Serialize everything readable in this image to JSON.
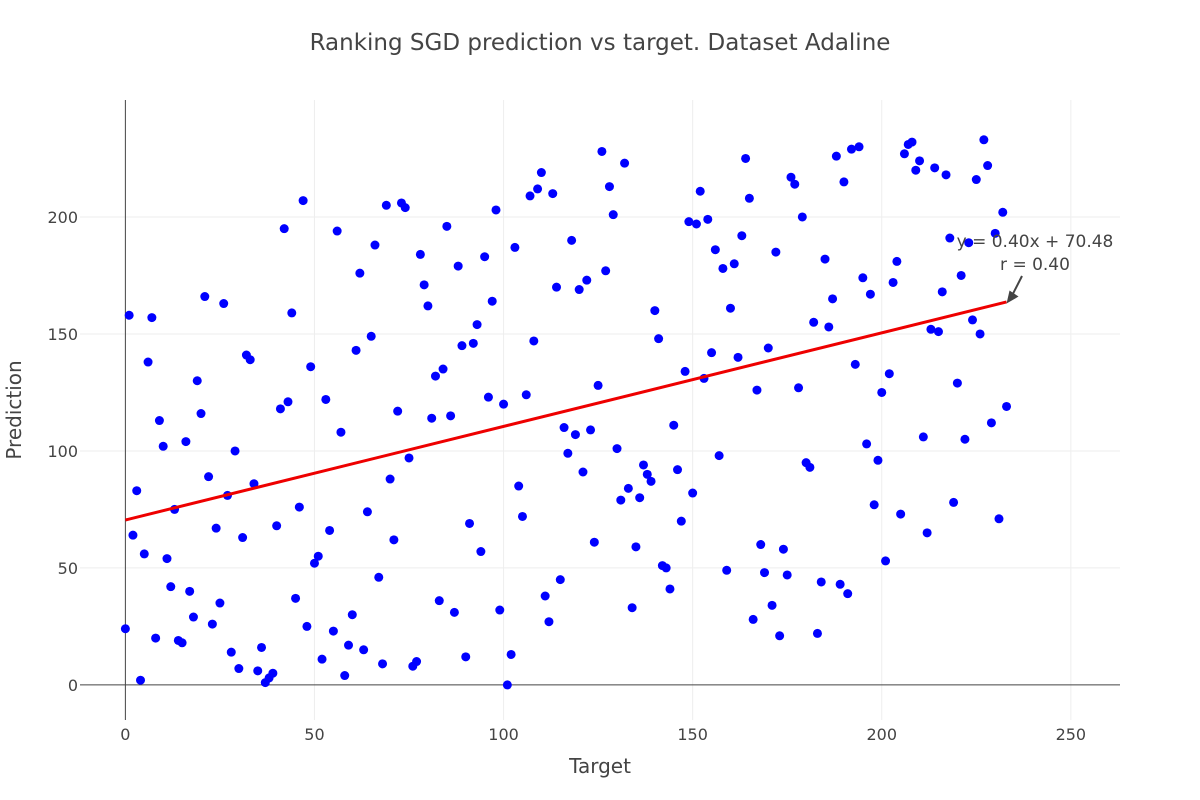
{
  "chart_data": {
    "type": "scatter",
    "title": "Ranking SGD prediction vs target. Dataset Adaline",
    "xlabel": "Target",
    "ylabel": "Prediction",
    "xlim": [
      -12,
      263
    ],
    "ylim": [
      -15,
      250
    ],
    "xticks": [
      0,
      50,
      100,
      150,
      200,
      250
    ],
    "yticks": [
      0,
      50,
      100,
      150,
      200
    ],
    "grid": true,
    "colors": {
      "points": "#0000ff",
      "fit_line": "#ee0000",
      "axis": "#444444",
      "grid": "#eeeeee"
    },
    "fit_line": {
      "slope": 0.4,
      "intercept": 70.48,
      "x_range": [
        0,
        233
      ]
    },
    "annotation": {
      "lines": [
        "y = 0.40x + 70.48",
        "r = 0.40"
      ],
      "points_to": [
        233,
        163
      ]
    },
    "points": [
      [
        0,
        24
      ],
      [
        1,
        158
      ],
      [
        2,
        64
      ],
      [
        3,
        83
      ],
      [
        4,
        2
      ],
      [
        5,
        56
      ],
      [
        6,
        138
      ],
      [
        7,
        157
      ],
      [
        8,
        20
      ],
      [
        9,
        113
      ],
      [
        10,
        102
      ],
      [
        11,
        54
      ],
      [
        12,
        42
      ],
      [
        13,
        75
      ],
      [
        14,
        19
      ],
      [
        15,
        18
      ],
      [
        16,
        104
      ],
      [
        17,
        40
      ],
      [
        18,
        29
      ],
      [
        19,
        130
      ],
      [
        20,
        116
      ],
      [
        21,
        166
      ],
      [
        22,
        89
      ],
      [
        23,
        26
      ],
      [
        24,
        67
      ],
      [
        25,
        35
      ],
      [
        26,
        163
      ],
      [
        27,
        81
      ],
      [
        28,
        14
      ],
      [
        29,
        100
      ],
      [
        30,
        7
      ],
      [
        31,
        63
      ],
      [
        32,
        141
      ],
      [
        33,
        139
      ],
      [
        34,
        86
      ],
      [
        35,
        6
      ],
      [
        36,
        16
      ],
      [
        37,
        1
      ],
      [
        38,
        3
      ],
      [
        39,
        5
      ],
      [
        40,
        68
      ],
      [
        41,
        118
      ],
      [
        42,
        195
      ],
      [
        43,
        121
      ],
      [
        44,
        159
      ],
      [
        45,
        37
      ],
      [
        46,
        76
      ],
      [
        47,
        207
      ],
      [
        48,
        25
      ],
      [
        49,
        136
      ],
      [
        50,
        52
      ],
      [
        51,
        55
      ],
      [
        52,
        11
      ],
      [
        53,
        122
      ],
      [
        54,
        66
      ],
      [
        55,
        23
      ],
      [
        56,
        194
      ],
      [
        57,
        108
      ],
      [
        58,
        4
      ],
      [
        59,
        17
      ],
      [
        60,
        30
      ],
      [
        61,
        143
      ],
      [
        62,
        176
      ],
      [
        63,
        15
      ],
      [
        64,
        74
      ],
      [
        65,
        149
      ],
      [
        66,
        188
      ],
      [
        67,
        46
      ],
      [
        68,
        9
      ],
      [
        69,
        205
      ],
      [
        70,
        88
      ],
      [
        71,
        62
      ],
      [
        72,
        117
      ],
      [
        73,
        206
      ],
      [
        74,
        204
      ],
      [
        75,
        97
      ],
      [
        76,
        8
      ],
      [
        77,
        10
      ],
      [
        78,
        184
      ],
      [
        79,
        171
      ],
      [
        80,
        162
      ],
      [
        81,
        114
      ],
      [
        82,
        132
      ],
      [
        83,
        36
      ],
      [
        84,
        135
      ],
      [
        85,
        196
      ],
      [
        86,
        115
      ],
      [
        87,
        31
      ],
      [
        88,
        179
      ],
      [
        89,
        145
      ],
      [
        90,
        12
      ],
      [
        91,
        69
      ],
      [
        92,
        146
      ],
      [
        93,
        154
      ],
      [
        94,
        57
      ],
      [
        95,
        183
      ],
      [
        96,
        123
      ],
      [
        97,
        164
      ],
      [
        98,
        203
      ],
      [
        99,
        32
      ],
      [
        100,
        120
      ],
      [
        101,
        0
      ],
      [
        102,
        13
      ],
      [
        103,
        187
      ],
      [
        104,
        85
      ],
      [
        105,
        72
      ],
      [
        106,
        124
      ],
      [
        107,
        209
      ],
      [
        108,
        147
      ],
      [
        109,
        212
      ],
      [
        110,
        219
      ],
      [
        111,
        38
      ],
      [
        112,
        27
      ],
      [
        113,
        210
      ],
      [
        114,
        170
      ],
      [
        115,
        45
      ],
      [
        116,
        110
      ],
      [
        117,
        99
      ],
      [
        118,
        190
      ],
      [
        119,
        107
      ],
      [
        120,
        169
      ],
      [
        121,
        91
      ],
      [
        122,
        173
      ],
      [
        123,
        109
      ],
      [
        124,
        61
      ],
      [
        125,
        128
      ],
      [
        126,
        228
      ],
      [
        127,
        177
      ],
      [
        128,
        213
      ],
      [
        129,
        201
      ],
      [
        130,
        101
      ],
      [
        131,
        79
      ],
      [
        132,
        223
      ],
      [
        133,
        84
      ],
      [
        134,
        33
      ],
      [
        135,
        59
      ],
      [
        136,
        80
      ],
      [
        137,
        94
      ],
      [
        138,
        90
      ],
      [
        139,
        87
      ],
      [
        140,
        160
      ],
      [
        141,
        148
      ],
      [
        142,
        51
      ],
      [
        143,
        50
      ],
      [
        144,
        41
      ],
      [
        145,
        111
      ],
      [
        146,
        92
      ],
      [
        147,
        70
      ],
      [
        148,
        134
      ],
      [
        149,
        198
      ],
      [
        150,
        82
      ],
      [
        151,
        197
      ],
      [
        152,
        211
      ],
      [
        153,
        131
      ],
      [
        154,
        199
      ],
      [
        155,
        142
      ],
      [
        156,
        186
      ],
      [
        157,
        98
      ],
      [
        158,
        178
      ],
      [
        159,
        49
      ],
      [
        160,
        161
      ],
      [
        161,
        180
      ],
      [
        162,
        140
      ],
      [
        163,
        192
      ],
      [
        164,
        225
      ],
      [
        165,
        208
      ],
      [
        166,
        28
      ],
      [
        167,
        126
      ],
      [
        168,
        60
      ],
      [
        169,
        48
      ],
      [
        170,
        144
      ],
      [
        171,
        34
      ],
      [
        172,
        185
      ],
      [
        173,
        21
      ],
      [
        174,
        58
      ],
      [
        175,
        47
      ],
      [
        176,
        217
      ],
      [
        177,
        214
      ],
      [
        178,
        127
      ],
      [
        179,
        200
      ],
      [
        180,
        95
      ],
      [
        181,
        93
      ],
      [
        182,
        155
      ],
      [
        183,
        22
      ],
      [
        184,
        44
      ],
      [
        185,
        182
      ],
      [
        186,
        153
      ],
      [
        187,
        165
      ],
      [
        188,
        226
      ],
      [
        189,
        43
      ],
      [
        190,
        215
      ],
      [
        191,
        39
      ],
      [
        192,
        229
      ],
      [
        193,
        137
      ],
      [
        194,
        230
      ],
      [
        195,
        174
      ],
      [
        196,
        103
      ],
      [
        197,
        167
      ],
      [
        198,
        77
      ],
      [
        199,
        96
      ],
      [
        200,
        125
      ],
      [
        201,
        53
      ],
      [
        202,
        133
      ],
      [
        203,
        172
      ],
      [
        204,
        181
      ],
      [
        205,
        73
      ],
      [
        206,
        227
      ],
      [
        207,
        231
      ],
      [
        208,
        232
      ],
      [
        209,
        220
      ],
      [
        210,
        224
      ],
      [
        211,
        106
      ],
      [
        212,
        65
      ],
      [
        213,
        152
      ],
      [
        214,
        221
      ],
      [
        215,
        151
      ],
      [
        216,
        168
      ],
      [
        217,
        218
      ],
      [
        218,
        191
      ],
      [
        219,
        78
      ],
      [
        220,
        129
      ],
      [
        221,
        175
      ],
      [
        222,
        105
      ],
      [
        223,
        189
      ],
      [
        224,
        156
      ],
      [
        225,
        216
      ],
      [
        226,
        150
      ],
      [
        227,
        233
      ],
      [
        228,
        222
      ],
      [
        229,
        112
      ],
      [
        230,
        193
      ],
      [
        231,
        71
      ],
      [
        232,
        202
      ],
      [
        233,
        119
      ]
    ]
  }
}
